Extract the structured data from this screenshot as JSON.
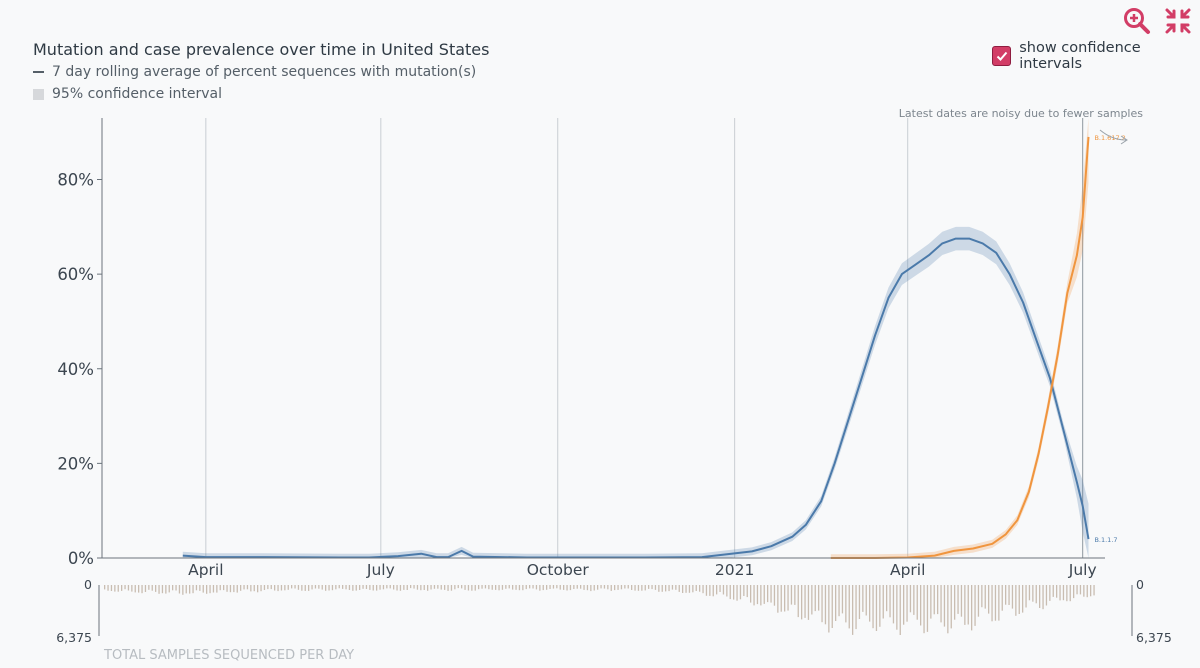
{
  "header": {
    "title": "Mutation and case prevalence over time in United States",
    "legend_line_label": "7 day rolling average of percent sequences with mutation(s)",
    "legend_ci_label": "95% confidence interval",
    "ci_toggle_label": "show confidence intervals",
    "ci_toggle_checked": true,
    "zoom_icon": "zoom-in-icon",
    "collapse_icon": "collapse-arrows-icon",
    "accent_color": "#d23d66"
  },
  "chart_data": {
    "type": "line",
    "title": "Mutation and case prevalence over time in United States",
    "x_tick_labels": [
      "April",
      "July",
      "October",
      "2021",
      "April",
      "July"
    ],
    "y_tick_labels": [
      "0%",
      "20%",
      "40%",
      "60%",
      "80%"
    ],
    "ylim": [
      0,
      93
    ],
    "annotation": "Latest dates are noisy due to fewer samples",
    "series": [
      {
        "name": "B.1.1.7",
        "color": "#4b7aaa",
        "points": [
          [
            "2020-03-20",
            0.5
          ],
          [
            "2020-04-01",
            0.2
          ],
          [
            "2020-05-01",
            0.2
          ],
          [
            "2020-06-10",
            0.1
          ],
          [
            "2020-06-25",
            0.1
          ],
          [
            "2020-07-10",
            0.4
          ],
          [
            "2020-07-22",
            0.9
          ],
          [
            "2020-07-30",
            0.2
          ],
          [
            "2020-08-05",
            0.2
          ],
          [
            "2020-08-12",
            1.5
          ],
          [
            "2020-08-18",
            0.3
          ],
          [
            "2020-09-15",
            0.1
          ],
          [
            "2020-10-15",
            0.1
          ],
          [
            "2020-11-15",
            0.1
          ],
          [
            "2020-12-15",
            0.2
          ],
          [
            "2020-12-28",
            0.8
          ],
          [
            "2021-01-10",
            1.4
          ],
          [
            "2021-01-20",
            2.5
          ],
          [
            "2021-01-31",
            4.5
          ],
          [
            "2021-02-07",
            7
          ],
          [
            "2021-02-15",
            12
          ],
          [
            "2021-02-22",
            20
          ],
          [
            "2021-03-01",
            29
          ],
          [
            "2021-03-08",
            38
          ],
          [
            "2021-03-15",
            47
          ],
          [
            "2021-03-22",
            55
          ],
          [
            "2021-03-29",
            60
          ],
          [
            "2021-04-05",
            62
          ],
          [
            "2021-04-12",
            64
          ],
          [
            "2021-04-19",
            66.5
          ],
          [
            "2021-04-26",
            67.5
          ],
          [
            "2021-05-03",
            67.5
          ],
          [
            "2021-05-10",
            66.5
          ],
          [
            "2021-05-17",
            64.5
          ],
          [
            "2021-05-24",
            60
          ],
          [
            "2021-05-31",
            54
          ],
          [
            "2021-06-07",
            46
          ],
          [
            "2021-06-14",
            38
          ],
          [
            "2021-06-21",
            27
          ],
          [
            "2021-06-28",
            16
          ],
          [
            "2021-07-01",
            11
          ],
          [
            "2021-07-04",
            4
          ]
        ]
      },
      {
        "name": "B.1.617.2",
        "color": "#f0953e",
        "points": [
          [
            "2021-02-20",
            0
          ],
          [
            "2021-03-15",
            0
          ],
          [
            "2021-04-01",
            0.1
          ],
          [
            "2021-04-15",
            0.5
          ],
          [
            "2021-04-25",
            1.5
          ],
          [
            "2021-05-05",
            2
          ],
          [
            "2021-05-15",
            3
          ],
          [
            "2021-05-22",
            5
          ],
          [
            "2021-05-28",
            8
          ],
          [
            "2021-06-03",
            14
          ],
          [
            "2021-06-08",
            22
          ],
          [
            "2021-06-13",
            32
          ],
          [
            "2021-06-18",
            43
          ],
          [
            "2021-06-23",
            56
          ],
          [
            "2021-06-28",
            64
          ],
          [
            "2021-07-01",
            72
          ],
          [
            "2021-07-04",
            89
          ]
        ]
      }
    ],
    "samples_axis_labels": [
      "0",
      "6,375"
    ],
    "samples_caption": "TOTAL SAMPLES SEQUENCED PER DAY",
    "samples_per_day_max": 6375
  }
}
